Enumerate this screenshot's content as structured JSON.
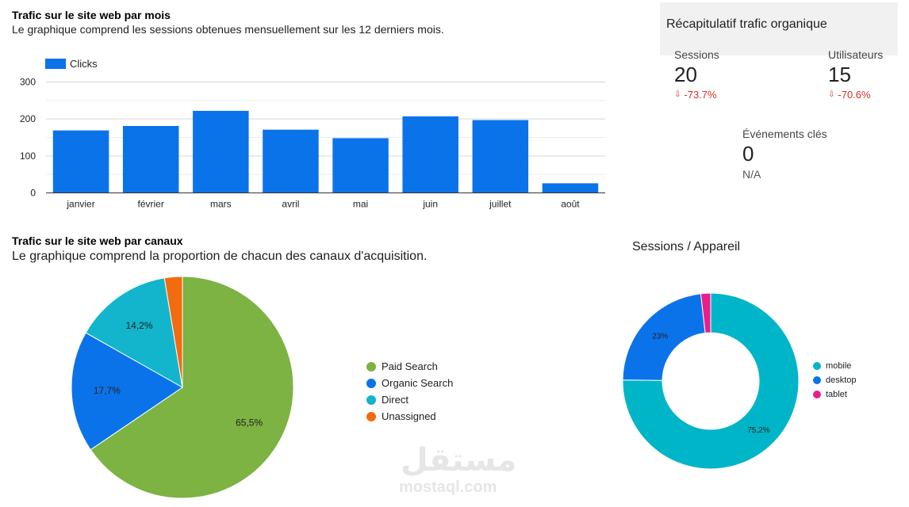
{
  "monthly": {
    "title": "Trafic sur le site web par mois",
    "subtitle": "Le graphique comprend les sessions obtenues mensuellement sur les 12 derniers mois."
  },
  "channels": {
    "title": "Trafic sur le site web par canaux",
    "subtitle": "Le graphique comprend la proportion de chacun des canaux d'acquisition."
  },
  "devices": {
    "title": "Sessions / Appareil"
  },
  "summary": {
    "title": "Récapitulatif trafic organique",
    "sessions": {
      "label": "Sessions",
      "value": "20",
      "delta": "-73.7%"
    },
    "users": {
      "label": "Utilisateurs",
      "value": "15",
      "delta": "-70.6%"
    },
    "key_events": {
      "label": "Événements clés",
      "value": "0",
      "delta": "N/A"
    }
  },
  "watermark": {
    "arabic": "مستقل",
    "latin": "mostaql.com"
  },
  "colors": {
    "bar": "#0b73ea",
    "paid_search": "#7cb342",
    "organic_search": "#0b73ea",
    "direct": "#12b5cb",
    "unassigned": "#f26b0f",
    "mobile": "#00b5c8",
    "desktop": "#0b73ea",
    "tablet": "#e91e8c",
    "negative": "#d93025"
  },
  "chart_data": [
    {
      "type": "bar",
      "categories": [
        "janvier",
        "février",
        "mars",
        "avril",
        "mai",
        "juin",
        "juillet",
        "août"
      ],
      "series": [
        {
          "name": "Clicks",
          "values": [
            169,
            181,
            222,
            171,
            148,
            207,
            197,
            26
          ]
        }
      ],
      "ylim": [
        0,
        300
      ],
      "yticks": [
        0,
        100,
        200,
        300
      ],
      "grid": true,
      "legend": "top-left"
    },
    {
      "type": "pie",
      "labels": [
        "Paid Search",
        "Organic Search",
        "Direct",
        "Unassigned"
      ],
      "values": [
        65.5,
        17.7,
        14.2,
        2.6
      ],
      "data_labels": [
        "65,5%",
        "17,7%",
        "14,2%",
        ""
      ],
      "legend": "right"
    },
    {
      "type": "pie",
      "donut": true,
      "labels": [
        "mobile",
        "desktop",
        "tablet"
      ],
      "values": [
        75.2,
        23,
        1.8
      ],
      "data_labels": [
        "75,2%",
        "23%",
        ""
      ],
      "legend": "right"
    }
  ]
}
